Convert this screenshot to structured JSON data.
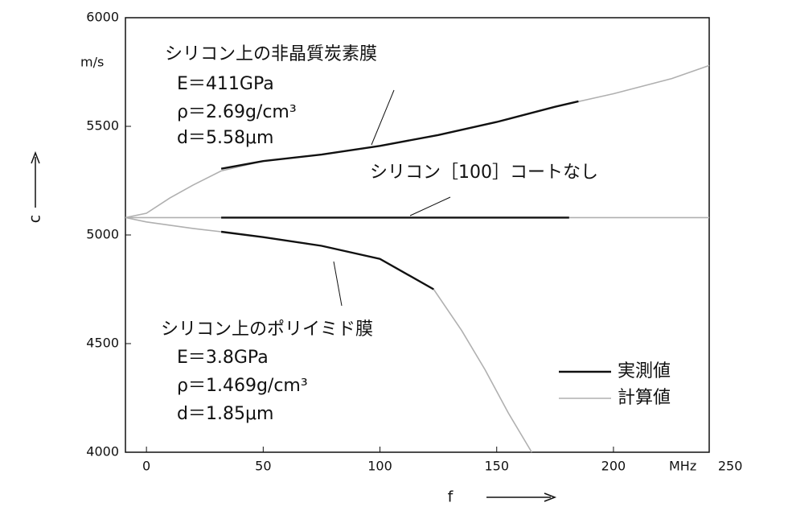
{
  "chart_data": {
    "type": "line",
    "x_label": "f",
    "y_label": "c",
    "x_unit": "MHz",
    "y_unit": "m/s",
    "xlim": [
      -9,
      241
    ],
    "ylim": [
      4000,
      6000
    ],
    "xticks": [
      0,
      50,
      100,
      150,
      200,
      250
    ],
    "yticks": [
      4000,
      4500,
      5000,
      5500,
      6000
    ],
    "grid": false,
    "legend": [
      {
        "label": "実測値",
        "color": "#111111"
      },
      {
        "label": "計算値",
        "color": "#b0b0b0"
      }
    ],
    "curves": [
      {
        "lines": [
          "シリコン上の非晶質炭素膜",
          "E＝411GPa",
          "ρ＝2.69g/cm³",
          "d＝5.58μm"
        ],
        "calculated": {
          "x": [
            -9,
            0,
            10,
            20,
            32,
            50,
            75,
            100,
            125,
            150,
            175,
            200,
            225,
            241
          ],
          "values": [
            5080,
            5100,
            5170,
            5230,
            5295,
            5340,
            5370,
            5410,
            5460,
            5520,
            5590,
            5650,
            5720,
            5780
          ]
        },
        "measured": {
          "x": [
            32,
            50,
            75,
            100,
            125,
            150,
            175,
            185
          ],
          "values": [
            5305,
            5340,
            5370,
            5410,
            5460,
            5520,
            5590,
            5615
          ]
        }
      },
      {
        "lines": [
          "シリコン［100］コートなし"
        ],
        "calculated": {
          "x": [
            -9,
            241
          ],
          "values": [
            5080,
            5080
          ]
        },
        "measured": {
          "x": [
            32,
            181
          ],
          "values": [
            5080,
            5080
          ]
        }
      },
      {
        "lines": [
          "シリコン上のポリイミド膜",
          "E＝3.8GPa",
          "ρ＝1.469g/cm³",
          "d＝1.85μm"
        ],
        "calculated": {
          "x": [
            -9,
            0,
            20,
            32,
            50,
            75,
            100,
            123,
            135,
            145,
            155,
            165
          ],
          "values": [
            5080,
            5060,
            5030,
            5015,
            4990,
            4950,
            4890,
            4750,
            4560,
            4380,
            4180,
            4000
          ]
        },
        "measured": {
          "x": [
            32,
            50,
            75,
            100,
            123
          ],
          "values": [
            5015,
            4990,
            4950,
            4890,
            4750
          ]
        }
      }
    ]
  }
}
